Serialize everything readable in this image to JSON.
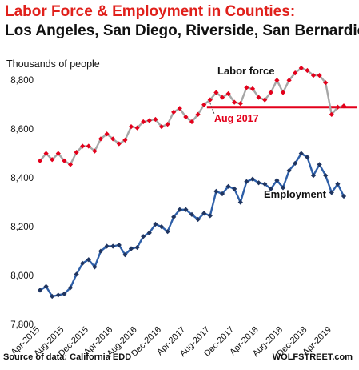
{
  "title_line1": "Labor Force & Employment in Counties:",
  "title_line2": "Los Angeles, San Diego, Riverside, San Bernardio",
  "footer": {
    "source": "Source of data: California EDD",
    "brand": "WOLFSTREET.com"
  },
  "chart_data": {
    "type": "line",
    "ylabel": "Thousands of people",
    "ylim": [
      7800,
      8850
    ],
    "yticks": [
      7800,
      8000,
      8200,
      8400,
      8600,
      8800
    ],
    "ytick_labels": [
      "7,800",
      "8,000",
      "8,200",
      "8,400",
      "8,600",
      "8,800"
    ],
    "grid": false,
    "x": [
      "Apr-2015",
      "May-2015",
      "Jun-2015",
      "Jul-2015",
      "Aug-2015",
      "Sep-2015",
      "Oct-2015",
      "Nov-2015",
      "Dec-2015",
      "Jan-2016",
      "Feb-2016",
      "Mar-2016",
      "Apr-2016",
      "May-2016",
      "Jun-2016",
      "Jul-2016",
      "Aug-2016",
      "Sep-2016",
      "Oct-2016",
      "Nov-2016",
      "Dec-2016",
      "Jan-2017",
      "Feb-2017",
      "Mar-2017",
      "Apr-2017",
      "May-2017",
      "Jun-2017",
      "Jul-2017",
      "Aug-2017",
      "Sep-2017",
      "Oct-2017",
      "Nov-2017",
      "Dec-2017",
      "Jan-2018",
      "Feb-2018",
      "Mar-2018",
      "Apr-2018",
      "May-2018",
      "Jun-2018",
      "Jul-2018",
      "Aug-2018",
      "Sep-2018",
      "Oct-2018",
      "Nov-2018",
      "Dec-2018",
      "Jan-2019",
      "Feb-2019",
      "Mar-2019",
      "Apr-2019",
      "May-2019",
      "Jun-2019"
    ],
    "xtick_labels": [
      "Apr-2015",
      "Aug-2015",
      "Dec-2015",
      "Apr-2016",
      "Aug-2016",
      "Dec-2016",
      "Apr-2017",
      "Aug-2017",
      "Dec-2017",
      "Apr-2018",
      "Aug-2018",
      "Dec-2018",
      "Apr-2019"
    ],
    "series": [
      {
        "name": "Labor force",
        "line_color": "#a6a6a6",
        "marker_color": "#e3001b",
        "values": [
          8470,
          8500,
          8475,
          8500,
          8470,
          8455,
          8505,
          8530,
          8530,
          8510,
          8560,
          8580,
          8560,
          8540,
          8555,
          8610,
          8605,
          8630,
          8635,
          8640,
          8610,
          8620,
          8670,
          8685,
          8650,
          8630,
          8660,
          8700,
          8720,
          8750,
          8730,
          8745,
          8710,
          8705,
          8770,
          8765,
          8730,
          8720,
          8750,
          8800,
          8750,
          8800,
          8830,
          8850,
          8840,
          8820,
          8820,
          8790,
          8660,
          8690,
          8695
        ]
      },
      {
        "name": "Employment",
        "line_color": "#2e5fa8",
        "marker_color": "#1f3561",
        "values": [
          7940,
          7955,
          7915,
          7920,
          7925,
          7950,
          8005,
          8050,
          8065,
          8035,
          8100,
          8120,
          8120,
          8125,
          8085,
          8110,
          8115,
          8160,
          8175,
          8210,
          8200,
          8180,
          8240,
          8270,
          8270,
          8250,
          8230,
          8255,
          8245,
          8345,
          8335,
          8365,
          8355,
          8300,
          8385,
          8395,
          8380,
          8375,
          8355,
          8390,
          8360,
          8430,
          8460,
          8500,
          8485,
          8410,
          8455,
          8410,
          8340,
          8375,
          8325
        ]
      }
    ],
    "reference_line": {
      "value": 8690,
      "color": "#e3001b",
      "start_x": "Aug-2017"
    },
    "annotations": [
      {
        "text": "Aug 2017",
        "color": "#e3001b",
        "x": "Aug-2017"
      }
    ]
  }
}
